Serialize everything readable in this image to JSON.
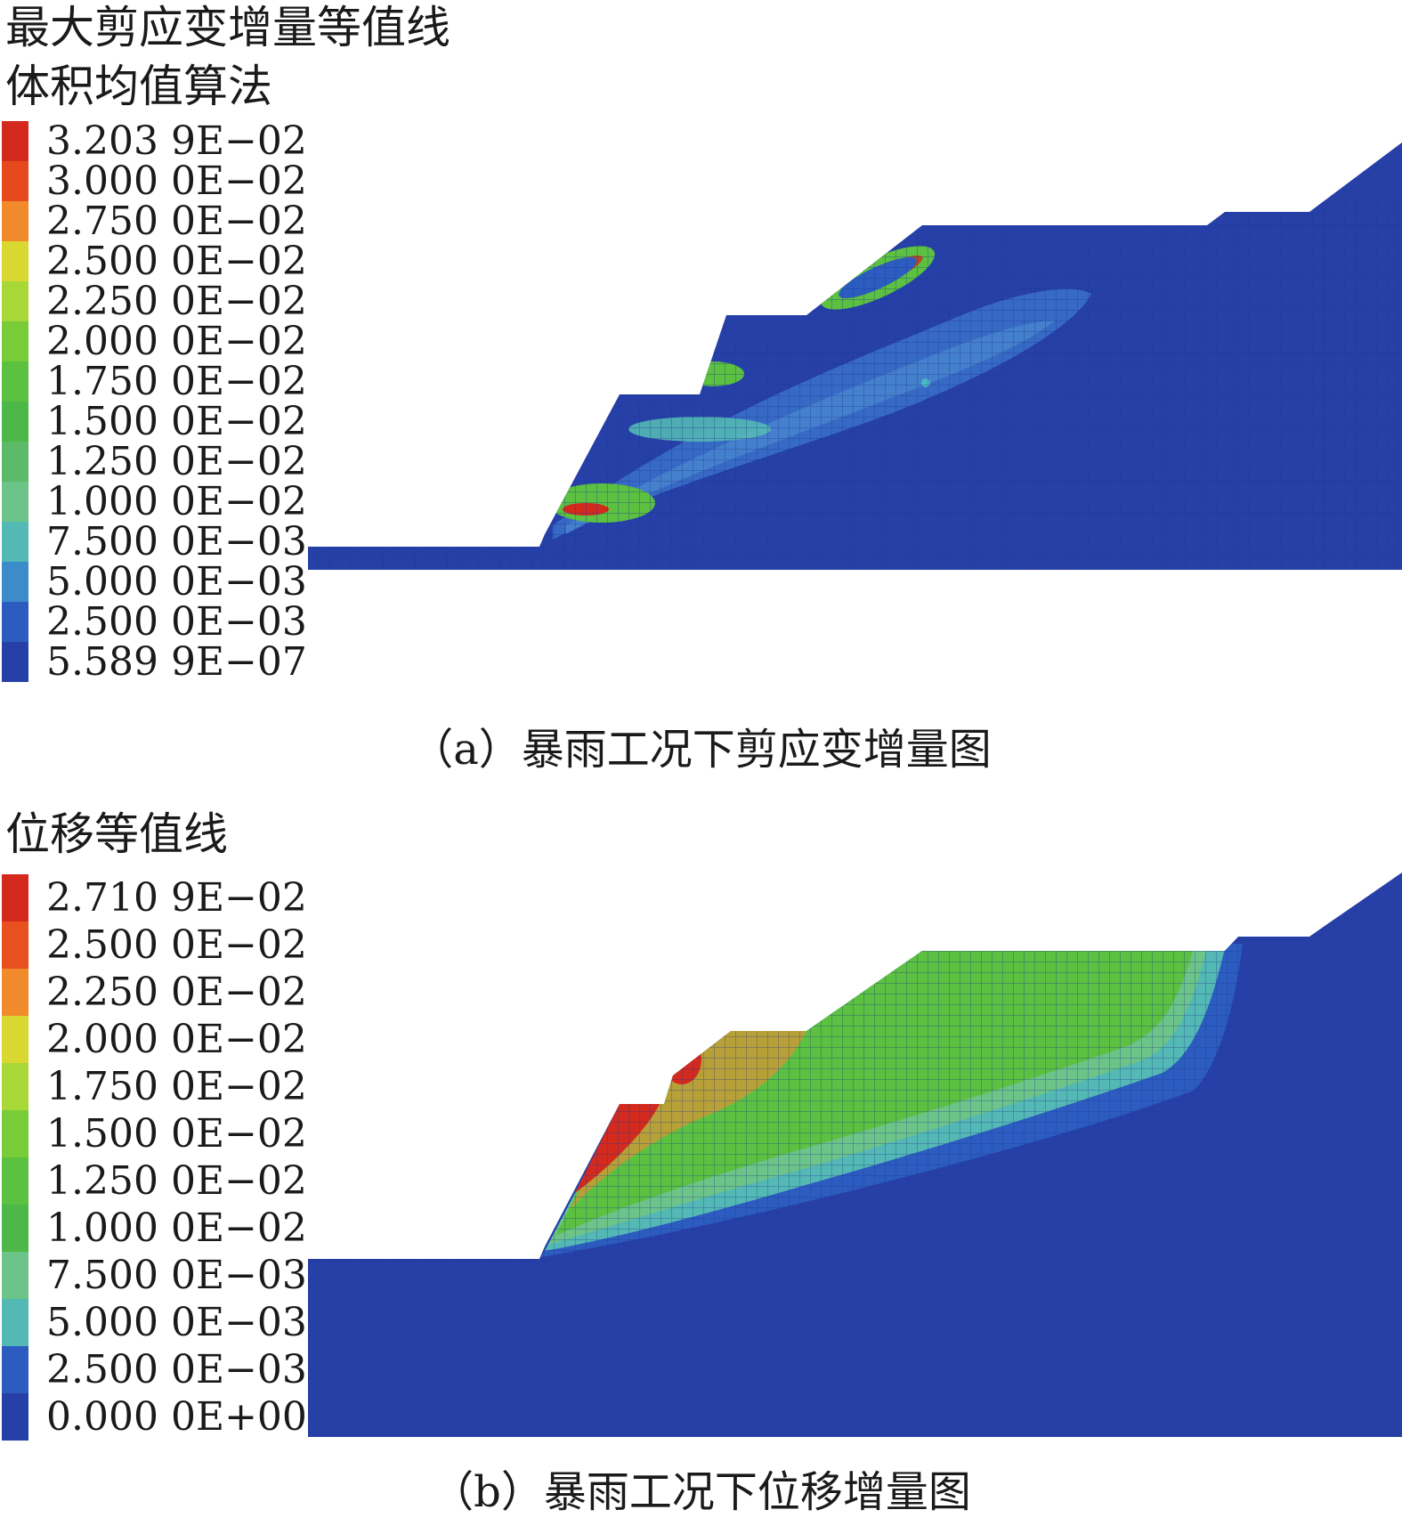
{
  "panel_a": {
    "title_line1": "最大剪应变增量等值线",
    "title_line2": "体积均值算法",
    "legend_values": [
      "3.203 9E−02",
      "3.000 0E−02",
      "2.750 0E−02",
      "2.500 0E−02",
      "2.250 0E−02",
      "2.000 0E−02",
      "1.750 0E−02",
      "1.500 0E−02",
      "1.250 0E−02",
      "1.000 0E−02",
      "7.500 0E−03",
      "5.000 0E−03",
      "2.500 0E−03",
      "5.589 9E−07"
    ],
    "legend_colors": [
      "#d42a1e",
      "#e64a1c",
      "#f08a2a",
      "#d8d830",
      "#a8d838",
      "#78cc38",
      "#5cc040",
      "#4cb848",
      "#5cba68",
      "#6cc488",
      "#54b8b4",
      "#3c8ccc",
      "#2c5cc0",
      "#2640a8"
    ],
    "caption": "（a）暴雨工况下剪应变增量图"
  },
  "panel_b": {
    "title": "位移等值线",
    "legend_values": [
      "2.710 9E−02",
      "2.500 0E−02",
      "2.250 0E−02",
      "2.000 0E−02",
      "1.750 0E−02",
      "1.500 0E−02",
      "1.250 0E−02",
      "1.000 0E−02",
      "7.500 0E−03",
      "5.000 0E−03",
      "2.500 0E−03",
      "0.000 0E+00"
    ],
    "legend_colors": [
      "#d42a1e",
      "#e85020",
      "#f08a2a",
      "#d8d830",
      "#a8d838",
      "#78cc38",
      "#5cc040",
      "#4cb848",
      "#6cc488",
      "#54b8b4",
      "#2c5cc0",
      "#2640a8"
    ],
    "caption": "（b）暴雨工况下位移增量图"
  }
}
